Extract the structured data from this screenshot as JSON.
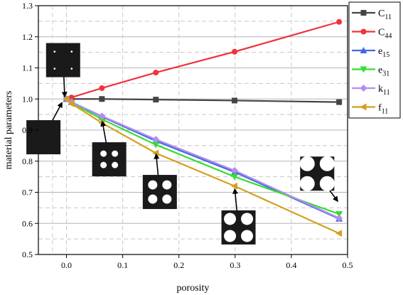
{
  "chart_data": {
    "type": "line",
    "xlabel": "porosity",
    "ylabel": "material parameters",
    "xlim": [
      -0.05,
      0.5
    ],
    "ylim": [
      0.5,
      1.3
    ],
    "x_ticks": [
      "0.0",
      "0.1",
      "0.2",
      "0.3",
      "0.4",
      "0.5"
    ],
    "y_ticks": [
      "0.5",
      "0.6",
      "0.7",
      "0.8",
      "0.9",
      "1.0",
      "1.1",
      "1.2",
      "1.3"
    ],
    "x_tick_values": [
      0.0,
      0.1,
      0.2,
      0.3,
      0.4,
      0.5
    ],
    "y_tick_values": [
      0.5,
      0.6,
      0.7,
      0.8,
      0.9,
      1.0,
      1.1,
      1.2,
      1.3
    ],
    "grid": true,
    "legend_position": "right",
    "series": [
      {
        "name": "C",
        "sub": "11",
        "color": "#444444",
        "marker": "square",
        "x": [
          0.0,
          0.063,
          0.159,
          0.299,
          0.485
        ],
        "y": [
          1.0,
          1.0,
          0.998,
          0.995,
          0.99
        ]
      },
      {
        "name": "C",
        "sub": "44",
        "color": "#f0323c",
        "marker": "circle",
        "x": [
          0.0,
          0.009,
          0.063,
          0.159,
          0.299,
          0.485
        ],
        "y": [
          1.0,
          1.005,
          1.035,
          1.085,
          1.152,
          1.248
        ]
      },
      {
        "name": "e",
        "sub": "15",
        "color": "#4169e1",
        "marker": "triangle-up",
        "x": [
          0.0,
          0.009,
          0.063,
          0.159,
          0.299,
          0.485
        ],
        "y": [
          1.0,
          0.99,
          0.943,
          0.865,
          0.765,
          0.615
        ]
      },
      {
        "name": "e",
        "sub": "31",
        "color": "#33dd33",
        "marker": "triangle-down",
        "x": [
          0.0,
          0.009,
          0.063,
          0.159,
          0.299,
          0.485
        ],
        "y": [
          1.0,
          0.988,
          0.935,
          0.853,
          0.75,
          0.63
        ]
      },
      {
        "name": "k",
        "sub": "11",
        "color": "#b58cf0",
        "marker": "diamond",
        "x": [
          0.0,
          0.009,
          0.063,
          0.159,
          0.299,
          0.485
        ],
        "y": [
          1.0,
          0.99,
          0.945,
          0.87,
          0.77,
          0.617
        ]
      },
      {
        "name": "f",
        "sub": "11",
        "color": "#d4a01e",
        "marker": "triangle-left",
        "x": [
          0.0,
          0.009,
          0.063,
          0.159,
          0.299,
          0.485
        ],
        "y": [
          1.0,
          0.985,
          0.923,
          0.826,
          0.72,
          0.568
        ]
      }
    ],
    "insets": [
      {
        "holes": 4,
        "hole_size": "tiny",
        "x": -0.006,
        "y": 1.125,
        "arrow_to": [
          -0.003,
          1.0
        ]
      },
      {
        "holes": 0,
        "hole_size": "none",
        "x": -0.041,
        "y": 0.877,
        "arrow_to": [
          -0.006,
          0.995
        ]
      },
      {
        "holes": 4,
        "hole_size": "small",
        "x": 0.076,
        "y": 0.806,
        "arrow_to": [
          0.063,
          0.935
        ]
      },
      {
        "holes": 4,
        "hole_size": "medium",
        "x": 0.166,
        "y": 0.701,
        "arrow_to": [
          0.159,
          0.83
        ]
      },
      {
        "holes": 4,
        "hole_size": "large",
        "x": 0.306,
        "y": 0.587,
        "arrow_to": [
          0.299,
          0.718
        ]
      },
      {
        "holes": 4,
        "hole_size": "xlarge",
        "x": 0.446,
        "y": 0.76,
        "arrow_to": [
          0.485,
          0.665
        ]
      }
    ]
  }
}
